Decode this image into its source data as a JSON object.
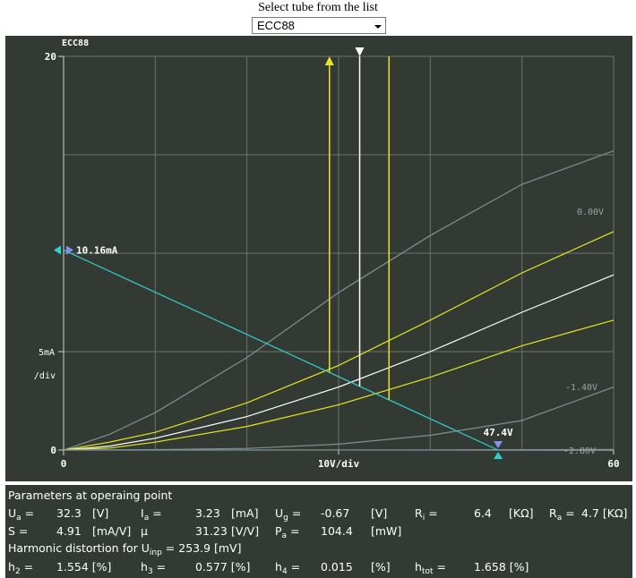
{
  "header": {
    "select_title": "Select tube from the list",
    "selected_tube": "ECC88"
  },
  "plot": {
    "tube_label": "ECC88",
    "y_tick_top": "20",
    "y_tick_zero": "0",
    "y_scale_label": "5mA",
    "y_scale_unit": "/div",
    "x_tick_zero": "0",
    "x_scale_label": "10V/div",
    "x_tick_max": "60",
    "op_current_label": "10.16mA",
    "op_voltage_label": "47.4V",
    "curve_labels": [
      "0.00V",
      "-1.40V",
      "-2.80V"
    ],
    "colors": {
      "background": "#333a33",
      "grid": "#6b716b",
      "axis": "#cfd2cf",
      "load_line": "#2fd0d0",
      "yellow": "#e6e620",
      "white": "#ffffff",
      "gray_curve": "#7f8f98"
    }
  },
  "chart_data": {
    "type": "line",
    "title": "ECC88",
    "xlabel": "10V/div",
    "ylabel": "5mA /div",
    "xlim": [
      0,
      60
    ],
    "ylim": [
      0,
      20
    ],
    "series": [
      {
        "x": [
          0,
          5,
          10,
          20,
          30,
          40,
          50,
          60
        ],
        "y": [
          0,
          0.8,
          1.9,
          4.7,
          8.0,
          10.9,
          13.5,
          15.2
        ]
      },
      {
        "x": [
          0,
          5,
          10,
          20,
          30,
          40,
          50,
          60
        ],
        "y": [
          0,
          0.4,
          0.9,
          2.4,
          4.3,
          6.6,
          9.0,
          11.1
        ]
      },
      {
        "x": [
          0,
          5,
          10,
          20,
          30,
          40,
          50,
          60
        ],
        "y": [
          0,
          0.2,
          0.6,
          1.7,
          3.2,
          5.0,
          7.0,
          8.9
        ]
      },
      {
        "x": [
          0,
          5,
          10,
          20,
          30,
          40,
          50,
          60
        ],
        "y": [
          0,
          0.1,
          0.4,
          1.2,
          2.3,
          3.7,
          5.3,
          6.6
        ]
      },
      {
        "x": [
          0,
          10,
          20,
          30,
          40,
          50,
          60
        ],
        "y": [
          0,
          0.02,
          0.08,
          0.3,
          0.75,
          1.5,
          3.2
        ]
      },
      {
        "x": [
          0,
          20,
          40,
          60
        ],
        "y": [
          0,
          0.0,
          0.01,
          0.03
        ]
      },
      {
        "x": [
          0,
          47.4
        ],
        "y": [
          10.16,
          0
        ]
      }
    ],
    "operating_point": {
      "x": 32.3,
      "y": 3.23
    },
    "swing_markers_x": [
      29,
      32.3,
      35.5
    ]
  },
  "params": {
    "title": "Parameters at operaing point",
    "ua_sym": "U",
    "ua_sub": "a",
    "ua_eq": "=",
    "ua_val": "32.3",
    "ua_unit": "[V]",
    "ia_sym": "I",
    "ia_sub": "a",
    "ia_eq": "=",
    "ia_val": "3.23",
    "ia_unit": "[mA]",
    "ug_sym": "U",
    "ug_sub": "g",
    "ug_eq": "=",
    "ug_val": "-0.67",
    "ug_unit": "[V]",
    "ri_sym": "R",
    "ri_sub": "i",
    "ri_eq": "=",
    "ri_val": "6.4",
    "ri_unit": "[KΩ]",
    "ra_sym": "R",
    "ra_sub": "a",
    "ra_eq": "=",
    "ra_val": "4.7",
    "ra_unit": "[KΩ]",
    "s_sym": "S",
    "s_eq": "=",
    "s_val": "4.91",
    "s_unit": "[mA/V]",
    "mu_sym": "μ",
    "mu_val": "31.23",
    "mu_unit": "[V/V]",
    "pa_sym": "P",
    "pa_sub": "a",
    "pa_eq": "=",
    "pa_val": "104.4",
    "pa_unit": "[mW]",
    "hd_prefix": "Harmonic distortion for U",
    "hd_sub": "inp",
    "hd_eq": "= 253.9 [mV]",
    "h2_sym": "h",
    "h2_sub": "2",
    "h2_eq": "=",
    "h2_val": "1.554 [%]",
    "h3_sym": "h",
    "h3_sub": "3",
    "h3_eq": "=",
    "h3_val": "0.577 [%]",
    "h4_sym": "h",
    "h4_sub": "4",
    "h4_eq": "=",
    "h4_val": "0.015",
    "h4_unit": "[%]",
    "htot_sym": "h",
    "htot_sub": "tot",
    "htot_eq": "=",
    "htot_val": "1.658 [%]"
  }
}
